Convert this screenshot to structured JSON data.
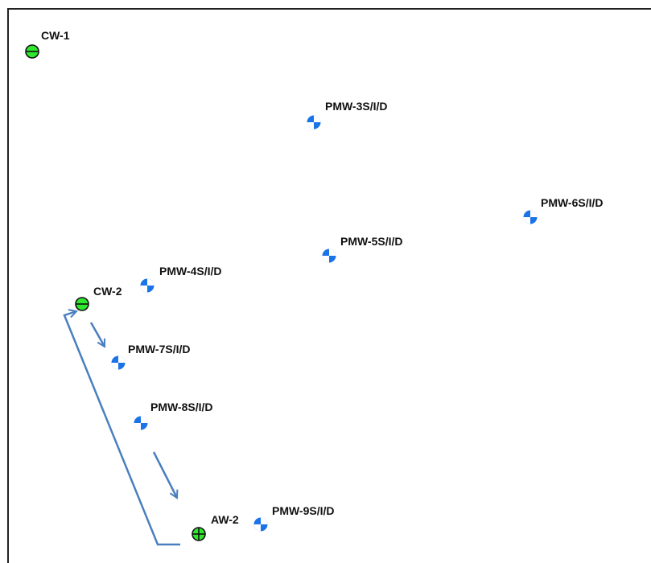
{
  "colors": {
    "monitoring_well": "#1a74e8",
    "control_well": "#2ee82e",
    "arrow": "#4a7fbf",
    "outline": "#111111"
  },
  "wells": [
    {
      "id": "cw1",
      "label": "CW-1",
      "type": "control",
      "icon": "circle-minus-icon"
    },
    {
      "id": "pmw3",
      "label": "PMW-3S/I/D",
      "type": "monitoring",
      "icon": "well-quadrant-icon"
    },
    {
      "id": "pmw6",
      "label": "PMW-6S/I/D",
      "type": "monitoring",
      "icon": "well-quadrant-icon"
    },
    {
      "id": "pmw5",
      "label": "PMW-5S/I/D",
      "type": "monitoring",
      "icon": "well-quadrant-icon"
    },
    {
      "id": "pmw4",
      "label": "PMW-4S/I/D",
      "type": "monitoring",
      "icon": "well-quadrant-icon"
    },
    {
      "id": "cw2",
      "label": "CW-2",
      "type": "control",
      "icon": "circle-minus-icon"
    },
    {
      "id": "pmw7",
      "label": "PMW-7S/I/D",
      "type": "monitoring",
      "icon": "well-quadrant-icon"
    },
    {
      "id": "pmw8",
      "label": "PMW-8S/I/D",
      "type": "monitoring",
      "icon": "well-quadrant-icon"
    },
    {
      "id": "aw2",
      "label": "AW-2",
      "type": "active",
      "icon": "circle-plus-icon"
    },
    {
      "id": "pmw9",
      "label": "PMW-9S/I/D",
      "type": "monitoring",
      "icon": "well-quadrant-icon"
    }
  ]
}
